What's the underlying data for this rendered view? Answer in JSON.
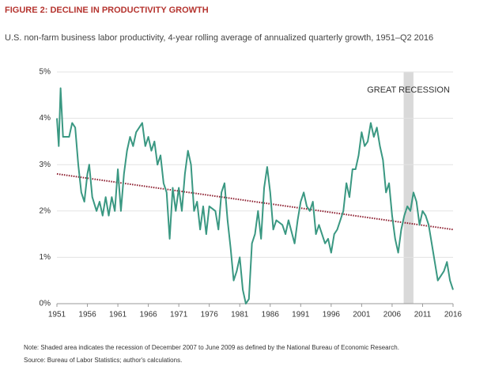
{
  "chart_data": {
    "type": "line",
    "title": "FIGURE 2: DECLINE IN PRODUCTIVITY GROWTH",
    "subtitle": "U.S. non-farm business labor productivity, 4-year rolling average of annualized quarterly growth, 1951–Q2 2016",
    "annotation": "GREAT RECESSION",
    "note": "Note: Shaded area indicates the recession of December 2007 to June 2009 as defined by the National Bureau of Economic Research.",
    "source": "Source: Bureau of Labor Statistics; author's calculations.",
    "x": [
      1951,
      1951.3,
      1951.6,
      1952,
      1953,
      1953.5,
      1954,
      1954.5,
      1955,
      1955.5,
      1956,
      1956.3,
      1956.8,
      1957.5,
      1958,
      1958.5,
      1959,
      1959.5,
      1960,
      1960.5,
      1961,
      1961.5,
      1962,
      1962.5,
      1963,
      1963.5,
      1964,
      1965,
      1965.5,
      1966,
      1966.5,
      1967,
      1967.5,
      1968,
      1968.5,
      1969,
      1969.5,
      1970,
      1970.5,
      1971,
      1971.5,
      1972,
      1972.5,
      1973,
      1973.5,
      1974,
      1974.5,
      1975,
      1975.5,
      1976,
      1977,
      1977.5,
      1978,
      1978.5,
      1979,
      1979.5,
      1980,
      1980.5,
      1981,
      1981.5,
      1982,
      1982.5,
      1983,
      1983.5,
      1984,
      1984.5,
      1985,
      1985.5,
      1986,
      1986.5,
      1987,
      1988,
      1988.5,
      1989,
      1990,
      1990.5,
      1991,
      1991.5,
      1992,
      1992.5,
      1993,
      1993.5,
      1994,
      1995,
      1995.5,
      1996,
      1996.5,
      1997,
      1998,
      1998.5,
      1999,
      1999.5,
      2000,
      2000.5,
      2001,
      2001.5,
      2002,
      2002.5,
      2003,
      2003.5,
      2004,
      2004.5,
      2005,
      2005.5,
      2006,
      2006.5,
      2007,
      2007.5,
      2008,
      2008.5,
      2009,
      2009.5,
      2010,
      2010.5,
      2011,
      2011.5,
      2012,
      2012.5,
      2013,
      2013.5,
      2014,
      2014.5,
      2015,
      2015.5,
      2016
    ],
    "series": [
      {
        "color": "#3a9882",
        "values": [
          4.0,
          3.4,
          4.65,
          3.6,
          3.6,
          3.9,
          3.8,
          3.0,
          2.4,
          2.2,
          2.8,
          3.0,
          2.3,
          2.0,
          2.2,
          1.9,
          2.3,
          1.9,
          2.3,
          2.0,
          2.9,
          2.0,
          2.8,
          3.3,
          3.6,
          3.4,
          3.7,
          3.9,
          3.4,
          3.6,
          3.3,
          3.5,
          3.0,
          3.2,
          2.6,
          2.4,
          1.4,
          2.5,
          2.0,
          2.5,
          2.0,
          2.8,
          3.3,
          3.0,
          2.0,
          2.2,
          1.6,
          2.1,
          1.5,
          2.1,
          2.0,
          1.6,
          2.4,
          2.6,
          1.8,
          1.2,
          0.5,
          0.7,
          1.0,
          0.3,
          0.0,
          0.1,
          1.3,
          1.5,
          2.0,
          1.4,
          2.5,
          2.95,
          2.4,
          1.6,
          1.8,
          1.7,
          1.5,
          1.8,
          1.3,
          1.8,
          2.2,
          2.4,
          2.1,
          2.0,
          2.2,
          1.5,
          1.7,
          1.3,
          1.4,
          1.1,
          1.5,
          1.6,
          2.0,
          2.6,
          2.3,
          2.9,
          2.9,
          3.2,
          3.7,
          3.4,
          3.5,
          3.9,
          3.6,
          3.8,
          3.4,
          3.1,
          2.4,
          2.6,
          1.9,
          1.4,
          1.1,
          1.6,
          1.9,
          2.1,
          2.0,
          2.4,
          2.2,
          1.7,
          2.0,
          1.9,
          1.7,
          1.3,
          0.9,
          0.5,
          0.6,
          0.7,
          0.9,
          0.5,
          0.3
        ]
      }
    ],
    "trend": {
      "x": [
        1951,
        2016
      ],
      "values": [
        2.8,
        1.6
      ],
      "color": "#8c1d2e"
    },
    "shaded_region": [
      2007.9,
      2009.5
    ],
    "xlim": [
      1951,
      2016
    ],
    "xticks": [
      1951,
      1956,
      1961,
      1966,
      1971,
      1976,
      1981,
      1986,
      1991,
      1996,
      2001,
      2006,
      2011,
      2016
    ],
    "ylim": [
      0,
      5
    ],
    "yticks": [
      {
        "value": 0,
        "label": "0%"
      },
      {
        "value": 1,
        "label": "1%"
      },
      {
        "value": 2,
        "label": "2%"
      },
      {
        "value": 3,
        "label": "3%"
      },
      {
        "value": 4,
        "label": "4%"
      },
      {
        "value": 5,
        "label": "5%"
      }
    ],
    "grid": true
  }
}
